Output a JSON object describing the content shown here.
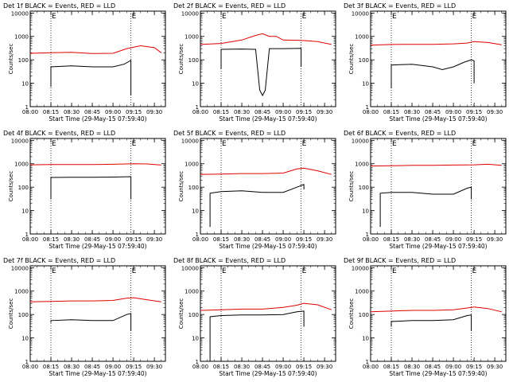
{
  "figure": {
    "xticks": [
      "08:00",
      "08:15",
      "08:30",
      "08:45",
      "09:00",
      "09:15",
      "09:30"
    ],
    "xlabel": "Start Time (29-May-15 07:59:40)",
    "ylabel": "Counts/sec",
    "yticks": [
      "1",
      "10",
      "100",
      "1000",
      "10000"
    ],
    "marker": "E",
    "colors": {
      "events": "#000000",
      "lld": "#e00000"
    }
  },
  "chart_data": [
    {
      "type": "line",
      "title": "Det 1f BLACK = Events, RED = LLD",
      "x_range": [
        "08:00",
        "09:38"
      ],
      "ylim": [
        1,
        12000
      ],
      "yscale": "log",
      "xticks": [
        "08:00",
        "08:15",
        "08:30",
        "08:45",
        "09:00",
        "09:15",
        "09:30"
      ],
      "xlabel": "Start Time (29-May-15 07:59:40)",
      "ylabel": "Counts/sec",
      "vlines": [
        "08:15",
        "09:13"
      ],
      "series": [
        {
          "name": "Events",
          "color": "#000000",
          "x": [
            "08:15",
            "08:15",
            "08:30",
            "08:45",
            "09:00",
            "09:08",
            "09:13",
            "09:13"
          ],
          "y": [
            7,
            50,
            55,
            50,
            50,
            65,
            95,
            3
          ]
        },
        {
          "name": "LLD",
          "color": "#e00000",
          "x": [
            "08:00",
            "08:15",
            "08:30",
            "08:45",
            "09:00",
            "09:10",
            "09:20",
            "09:30",
            "09:35"
          ],
          "y": [
            190,
            200,
            210,
            185,
            190,
            300,
            400,
            330,
            200
          ]
        }
      ]
    },
    {
      "type": "line",
      "title": "Det 2f BLACK = Events, RED = LLD",
      "x_range": [
        "08:00",
        "09:38"
      ],
      "ylim": [
        1,
        12000
      ],
      "yscale": "log",
      "xticks": [
        "08:00",
        "08:15",
        "08:30",
        "08:45",
        "09:00",
        "09:15",
        "09:30"
      ],
      "xlabel": "Start Time (29-May-15 07:59:40)",
      "ylabel": "Counts/sec",
      "vlines": [
        "08:15",
        "09:13"
      ],
      "series": [
        {
          "name": "Events",
          "color": "#000000",
          "x": [
            "08:15",
            "08:15",
            "08:30",
            "08:40",
            "08:43",
            "08:45",
            "08:47",
            "08:50",
            "09:00",
            "09:13",
            "09:13"
          ],
          "y": [
            40,
            280,
            290,
            280,
            5,
            3,
            5,
            300,
            300,
            310,
            50
          ]
        },
        {
          "name": "LLD",
          "color": "#e00000",
          "x": [
            "08:00",
            "08:15",
            "08:30",
            "08:40",
            "08:45",
            "08:50",
            "08:55",
            "09:00",
            "09:13",
            "09:25",
            "09:35"
          ],
          "y": [
            450,
            500,
            700,
            1100,
            1300,
            1000,
            1000,
            700,
            680,
            600,
            450
          ]
        }
      ]
    },
    {
      "type": "line",
      "title": "Det 3f BLACK = Events, RED = LLD",
      "x_range": [
        "08:00",
        "09:38"
      ],
      "ylim": [
        1,
        12000
      ],
      "yscale": "log",
      "xticks": [
        "08:00",
        "08:15",
        "08:30",
        "08:45",
        "09:00",
        "09:15",
        "09:30"
      ],
      "xlabel": "Start Time (29-May-15 07:59:40)",
      "ylabel": "Counts/sec",
      "vlines": [
        "08:15",
        "09:13"
      ],
      "series": [
        {
          "name": "Events",
          "color": "#000000",
          "x": [
            "08:15",
            "08:15",
            "08:30",
            "08:45",
            "08:52",
            "09:00",
            "09:08",
            "09:13",
            "09:15",
            "09:15"
          ],
          "y": [
            6,
            60,
            65,
            50,
            38,
            50,
            80,
            100,
            90,
            10
          ]
        },
        {
          "name": "LLD",
          "color": "#e00000",
          "x": [
            "08:00",
            "08:15",
            "08:30",
            "08:45",
            "09:00",
            "09:10",
            "09:15",
            "09:25",
            "09:35"
          ],
          "y": [
            420,
            450,
            460,
            460,
            480,
            520,
            600,
            550,
            440
          ]
        }
      ]
    },
    {
      "type": "line",
      "title": "Det 4f BLACK = Events, RED = LLD",
      "x_range": [
        "08:00",
        "09:38"
      ],
      "ylim": [
        1,
        12000
      ],
      "yscale": "log",
      "xticks": [
        "08:00",
        "08:15",
        "08:30",
        "08:45",
        "09:00",
        "09:15",
        "09:30"
      ],
      "xlabel": "Start Time (29-May-15 07:59:40)",
      "ylabel": "Counts/sec",
      "vlines": [
        "08:15",
        "09:13"
      ],
      "series": [
        {
          "name": "Events",
          "color": "#000000",
          "x": [
            "08:15",
            "08:15",
            "08:30",
            "08:45",
            "09:00",
            "09:13",
            "09:13"
          ],
          "y": [
            30,
            260,
            265,
            265,
            270,
            280,
            30
          ]
        },
        {
          "name": "LLD",
          "color": "#e00000",
          "x": [
            "08:00",
            "08:15",
            "08:30",
            "08:45",
            "09:00",
            "09:15",
            "09:25",
            "09:35"
          ],
          "y": [
            900,
            920,
            930,
            930,
            950,
            1000,
            980,
            880
          ]
        }
      ]
    },
    {
      "type": "line",
      "title": "Det 5f BLACK = Events, RED = LLD",
      "x_range": [
        "08:00",
        "09:38"
      ],
      "ylim": [
        1,
        12000
      ],
      "yscale": "log",
      "xticks": [
        "08:00",
        "08:15",
        "08:30",
        "08:45",
        "09:00",
        "09:15",
        "09:30"
      ],
      "xlabel": "Start Time (29-May-15 07:59:40)",
      "ylabel": "Counts/sec",
      "vlines": [
        "08:15",
        "09:13"
      ],
      "series": [
        {
          "name": "Events",
          "color": "#000000",
          "x": [
            "08:07",
            "08:07",
            "08:15",
            "08:30",
            "08:45",
            "09:00",
            "09:10",
            "09:15",
            "09:15"
          ],
          "y": [
            2,
            55,
            65,
            70,
            60,
            60,
            100,
            130,
            80
          ]
        },
        {
          "name": "LLD",
          "color": "#e00000",
          "x": [
            "08:00",
            "08:15",
            "08:30",
            "08:45",
            "09:00",
            "09:10",
            "09:15",
            "09:25",
            "09:35"
          ],
          "y": [
            350,
            360,
            380,
            380,
            400,
            600,
            650,
            500,
            350
          ]
        }
      ]
    },
    {
      "type": "line",
      "title": "Det 6f BLACK = Events, RED = LLD",
      "x_range": [
        "08:00",
        "09:38"
      ],
      "ylim": [
        1,
        12000
      ],
      "yscale": "log",
      "xticks": [
        "08:00",
        "08:15",
        "08:30",
        "08:45",
        "09:00",
        "09:15",
        "09:30"
      ],
      "xlabel": "Start Time (29-May-15 07:59:40)",
      "ylabel": "Counts/sec",
      "vlines": [
        "08:15",
        "09:13"
      ],
      "series": [
        {
          "name": "Events",
          "color": "#000000",
          "x": [
            "08:07",
            "08:07",
            "08:15",
            "08:30",
            "08:45",
            "09:00",
            "09:10",
            "09:13",
            "09:13"
          ],
          "y": [
            2,
            55,
            60,
            60,
            50,
            50,
            90,
            100,
            30
          ]
        },
        {
          "name": "LLD",
          "color": "#e00000",
          "x": [
            "08:00",
            "08:15",
            "08:30",
            "08:45",
            "09:00",
            "09:15",
            "09:25",
            "09:35"
          ],
          "y": [
            800,
            820,
            850,
            860,
            880,
            900,
            950,
            850
          ]
        }
      ]
    },
    {
      "type": "line",
      "title": "Det 7f BLACK = Events, RED = LLD",
      "x_range": [
        "08:00",
        "09:38"
      ],
      "ylim": [
        1,
        12000
      ],
      "yscale": "log",
      "xticks": [
        "08:00",
        "08:15",
        "08:30",
        "08:45",
        "09:00",
        "09:15",
        "09:30"
      ],
      "xlabel": "Start Time (29-May-15 07:59:40)",
      "ylabel": "Counts/sec",
      "vlines": [
        "08:15",
        "09:13"
      ],
      "series": [
        {
          "name": "Events",
          "color": "#000000",
          "x": [
            "08:15",
            "08:15",
            "08:30",
            "08:45",
            "09:00",
            "09:10",
            "09:13",
            "09:13"
          ],
          "y": [
            45,
            55,
            60,
            55,
            55,
            100,
            110,
            20
          ]
        },
        {
          "name": "LLD",
          "color": "#e00000",
          "x": [
            "08:00",
            "08:15",
            "08:30",
            "08:45",
            "09:00",
            "09:10",
            "09:15",
            "09:25",
            "09:35"
          ],
          "y": [
            350,
            360,
            380,
            380,
            400,
            500,
            520,
            420,
            350
          ]
        }
      ]
    },
    {
      "type": "line",
      "title": "Det 8f BLACK = Events, RED = LLD",
      "x_range": [
        "08:00",
        "09:38"
      ],
      "ylim": [
        1,
        12000
      ],
      "yscale": "log",
      "xticks": [
        "08:00",
        "08:15",
        "08:30",
        "08:45",
        "09:00",
        "09:15",
        "09:30"
      ],
      "xlabel": "Start Time (29-May-15 07:59:40)",
      "ylabel": "Counts/sec",
      "vlines": [
        "08:15",
        "09:13"
      ],
      "series": [
        {
          "name": "Events",
          "color": "#000000",
          "x": [
            "08:07",
            "08:07",
            "08:15",
            "08:30",
            "08:45",
            "09:00",
            "09:10",
            "09:15",
            "09:15"
          ],
          "y": [
            1,
            80,
            90,
            95,
            95,
            100,
            130,
            140,
            30
          ]
        },
        {
          "name": "LLD",
          "color": "#e00000",
          "x": [
            "08:00",
            "08:15",
            "08:30",
            "08:45",
            "09:00",
            "09:10",
            "09:15",
            "09:25",
            "09:35"
          ],
          "y": [
            150,
            160,
            170,
            170,
            200,
            250,
            300,
            260,
            160
          ]
        }
      ]
    },
    {
      "type": "line",
      "title": "Det 9f BLACK = Events, RED = LLD",
      "x_range": [
        "08:00",
        "09:38"
      ],
      "ylim": [
        1,
        12000
      ],
      "yscale": "log",
      "xticks": [
        "08:00",
        "08:15",
        "08:30",
        "08:45",
        "09:00",
        "09:15",
        "09:30"
      ],
      "xlabel": "Start Time (29-May-15 07:59:40)",
      "ylabel": "Counts/sec",
      "vlines": [
        "08:15",
        "09:13"
      ],
      "series": [
        {
          "name": "Events",
          "color": "#000000",
          "x": [
            "08:15",
            "08:15",
            "08:30",
            "08:45",
            "09:00",
            "09:10",
            "09:13",
            "09:13"
          ],
          "y": [
            30,
            50,
            55,
            55,
            60,
            90,
            95,
            20
          ]
        },
        {
          "name": "LLD",
          "color": "#e00000",
          "x": [
            "08:00",
            "08:15",
            "08:30",
            "08:45",
            "09:00",
            "09:10",
            "09:15",
            "09:25",
            "09:35"
          ],
          "y": [
            130,
            140,
            150,
            150,
            160,
            190,
            210,
            180,
            130
          ]
        }
      ]
    }
  ]
}
